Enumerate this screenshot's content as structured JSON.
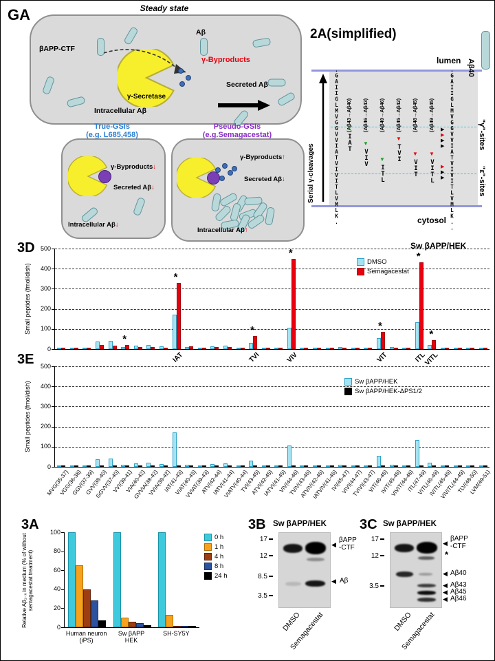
{
  "ga": {
    "label": "GA",
    "steady": {
      "title": "Steady state",
      "bapp_ctf": "βAPP-CTF",
      "abeta": "Aβ",
      "gamma_secretase": "γ-Secretase",
      "byproducts": "γ-Byproducts",
      "secreted": "Secreted Aβ",
      "intracellular": "Intracellular Aβ"
    },
    "true_gsi": {
      "title": "True-GSIs",
      "subtitle": "(e.g. L685,458)",
      "byproducts": "γ-Byproducts",
      "byproducts_arrow": "↓",
      "secreted": "Secreted Aβ",
      "secreted_arrow": "↓",
      "intracellular": "Intracellular Aβ",
      "intracellular_arrow": "↓"
    },
    "pseudo_gsi": {
      "title": "Pseudo-GSIs",
      "subtitle": "(e.g.Semagacestat)",
      "byproducts": "γ-Byproducts",
      "byproducts_arrow": "↑",
      "secreted": "Secreted Aβ",
      "secreted_arrow": "↓",
      "intracellular": "Intracellular Aβ",
      "intracellular_arrow": "↑"
    }
  },
  "panel2a": {
    "title": "2A(simplified)",
    "lumen": "lumen",
    "cytosol": "cytosol",
    "serial_label": "Serial γ-cleavages",
    "left_sequence": ".GAIIGLMVGGVVIATVIVITLVMLK.",
    "right_sequence": ".GAIIGLMVGGVVIATVIVITLVMLK..",
    "abeta40": "Aβ40",
    "gamma_sites": "\"γ\"-sites",
    "epsilon_sites": "\"ε\"-sites",
    "columns": [
      {
        "header": "(Aβ43→Aβ40)",
        "peptide": "IAT"
      },
      {
        "header": "(Aβ46→Aβ43)",
        "peptide": "VIV"
      },
      {
        "header": "(Aβ49→Aβ46)",
        "peptide": "ITL"
      },
      {
        "header": "(Aβ45→Aβ42)",
        "peptide": "TVI"
      },
      {
        "header": "(Aβ48→Aβ45)",
        "peptide": "VIT"
      },
      {
        "header": "(Aβ49→Aβ45)",
        "peptide": "VITL"
      }
    ]
  },
  "chart_data": [
    {
      "id": "3D",
      "type": "bar",
      "panel_label": "3D",
      "title": "Sw βAPP/HEK",
      "ylabel": "Small peptides (fmol/dish)",
      "xlabel": "",
      "ylim": [
        0,
        500
      ],
      "yticks": [
        0,
        100,
        200,
        300,
        400,
        500
      ],
      "grid": "horizontal dashed",
      "legend_position": "upper right",
      "categories": [
        "MVG(35-37)",
        "VGG(36-38)",
        "GGV(37-39)",
        "GVV(38-40)",
        "GGVV(37-40)",
        "VVI(39-41)",
        "VIA(40-42)",
        "GVVIA(38-42)",
        "VVIA(39-42)",
        "IAT(41-43)",
        "VIAT(40-43)",
        "VVIAT(39-43)",
        "ATV(42-44)",
        "IATV(41-44)",
        "VIATV(40-44)",
        "TVI(43-45)",
        "ATVI(42-45)",
        "IATVI(41-45)",
        "VIV(44-46)",
        "TVIV(43-46)",
        "ATVIV(42-46)",
        "IATVIV(41-46)",
        "IVI(45-47)",
        "VIVI(44-47)",
        "TVIVI(43-47)",
        "VIT(46-48)",
        "IVIT(45-48)",
        "VIVIT(44-48)",
        "ITL(47-49)",
        "VITL(46-49)",
        "IVITL(45-49)",
        "VIVITL(44-49)",
        "TLV(48-50)",
        "LVM(49-51)"
      ],
      "series": [
        {
          "name": "DMSO",
          "color": "#a5e3f2",
          "edge": "#2aa3c6",
          "values": [
            4,
            3,
            3,
            38,
            42,
            12,
            18,
            20,
            14,
            170,
            12,
            8,
            15,
            18,
            6,
            30,
            8,
            5,
            105,
            8,
            4,
            3,
            10,
            5,
            4,
            55,
            10,
            5,
            135,
            20,
            8,
            4,
            6,
            5
          ]
        },
        {
          "name": "Semagacestat",
          "color": "#e8000d",
          "edge": "#a50008",
          "values": [
            3,
            2,
            2,
            22,
            18,
            22,
            10,
            12,
            8,
            330,
            15,
            6,
            12,
            10,
            4,
            65,
            6,
            4,
            450,
            6,
            3,
            2,
            8,
            4,
            3,
            85,
            8,
            4,
            430,
            45,
            6,
            3,
            5,
            4
          ]
        }
      ],
      "significance_marks": {
        "symbol": "*",
        "category_indices": [
          5,
          9,
          15,
          18,
          25,
          28,
          29
        ]
      },
      "peptide_callouts": [
        {
          "index": 9,
          "label": "IAT"
        },
        {
          "index": 15,
          "label": "TVI"
        },
        {
          "index": 18,
          "label": "VIV"
        },
        {
          "index": 25,
          "label": "VIT"
        },
        {
          "index": 28,
          "label": "ITL"
        },
        {
          "index": 29,
          "label": "VITL"
        }
      ]
    },
    {
      "id": "3E",
      "type": "bar",
      "panel_label": "3E",
      "ylabel": "Small peptides (fmol/dish)",
      "xlabel": "",
      "ylim": [
        0,
        500
      ],
      "yticks": [
        0,
        100,
        200,
        300,
        400,
        500
      ],
      "grid": "horizontal dashed",
      "legend_position": "upper right",
      "categories": [
        "MVG(35-37)",
        "VGG(36-38)",
        "GGV(37-39)",
        "GVV(38-40)",
        "GGVV(37-40)",
        "VVI(39-41)",
        "VIA(40-42)",
        "GVVIA(38-42)",
        "VVIA(39-42)",
        "IAT(41-43)",
        "VIAT(40-43)",
        "VVIAT(39-43)",
        "ATV(42-44)",
        "IATV(41-44)",
        "VIATV(40-44)",
        "TVI(43-45)",
        "ATVI(42-45)",
        "IATVI(41-45)",
        "VIV(44-46)",
        "TVIV(43-46)",
        "ATVIV(42-46)",
        "IATVIV(41-46)",
        "IVI(45-47)",
        "VIVI(44-47)",
        "TVIVI(43-47)",
        "VIT(46-48)",
        "IVIT(45-48)",
        "VIVIT(44-48)",
        "ITL(47-49)",
        "VITL(46-49)",
        "IVITL(45-49)",
        "VIVITL(44-49)",
        "TLV(48-50)",
        "LVM(49-51)"
      ],
      "series": [
        {
          "name": "Sw βAPP/HEK",
          "color": "#a5e3f2",
          "edge": "#2aa3c6",
          "values": [
            4,
            3,
            3,
            38,
            42,
            12,
            18,
            20,
            14,
            170,
            12,
            8,
            15,
            18,
            6,
            30,
            8,
            5,
            105,
            8,
            4,
            3,
            10,
            5,
            4,
            55,
            10,
            5,
            135,
            20,
            8,
            4,
            6,
            5
          ]
        },
        {
          "name": "Sw βAPP/HEK-ΔPS1/2",
          "color": "#000000",
          "edge": "#000000",
          "values": [
            2,
            1,
            1,
            3,
            3,
            2,
            2,
            2,
            2,
            5,
            2,
            1,
            2,
            2,
            1,
            3,
            1,
            1,
            4,
            1,
            1,
            1,
            2,
            1,
            1,
            3,
            2,
            1,
            4,
            2,
            1,
            1,
            1,
            1
          ]
        }
      ]
    },
    {
      "id": "3A",
      "type": "bar",
      "panel_label": "3A",
      "ylabel": "Relative Aβ₁₋ₓ in medium (% of without semagacestat treatment)",
      "xlabel": "",
      "ylim": [
        0,
        100
      ],
      "yticks": [
        0,
        20,
        40,
        60,
        80,
        100
      ],
      "grid": "off",
      "legend_position": "upper right",
      "categories": [
        "Human neuron\n(iPS)",
        "Sw βAPP\nHEK",
        "SH-SY5Y"
      ],
      "series": [
        {
          "name": "0 h",
          "color": "#3ec9dc",
          "edge": "#1a93a6",
          "values": [
            100,
            100,
            100
          ]
        },
        {
          "name": "1 h",
          "color": "#f6a21e",
          "edge": "#b06f08",
          "values": [
            65,
            10,
            13
          ]
        },
        {
          "name": "4 h",
          "color": "#9c3d12",
          "edge": "#5e230a",
          "values": [
            40,
            6,
            1
          ]
        },
        {
          "name": "8 h",
          "color": "#2c52a0",
          "edge": "#182f63",
          "values": [
            28,
            4,
            1
          ]
        },
        {
          "name": "24 h",
          "color": "#000000",
          "edge": "#000000",
          "values": [
            7,
            2,
            1
          ]
        }
      ]
    }
  ],
  "blot3b": {
    "label": "3B",
    "title": "Sw βAPP/HEK",
    "markers": [
      "17",
      "12",
      "8.5",
      "3.5"
    ],
    "band_labels": [
      "βAPP",
      "-CTF",
      "Aβ"
    ],
    "lanes": [
      "DMSO",
      "Semagacestat"
    ]
  },
  "blot3c": {
    "label": "3C",
    "title": "Sw βAPP/HEK",
    "markers": [
      "17",
      "12",
      "3.5"
    ],
    "band_labels": [
      "βAPP",
      "-CTF",
      "*",
      "Aβ40",
      "Aβ43",
      "Aβ45",
      "Aβ46"
    ],
    "lanes": [
      "DMSO",
      "Semagacestat"
    ]
  }
}
